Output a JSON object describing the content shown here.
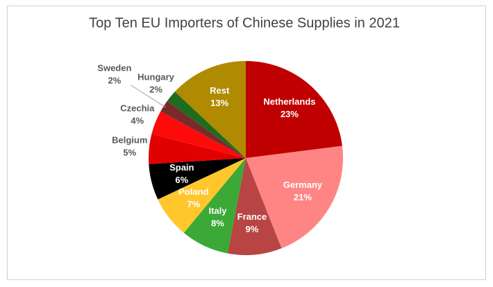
{
  "chart_data": {
    "type": "pie",
    "title": "Top Ten EU Importers of Chinese Supplies in 2021",
    "categories": [
      "Netherlands",
      "Germany",
      "France",
      "Italy",
      "Poland",
      "Spain",
      "Belgium",
      "Czechia",
      "Sweden",
      "Hungary",
      "Rest"
    ],
    "values": [
      23,
      21,
      9,
      8,
      7,
      6,
      5,
      4,
      2,
      2,
      13
    ],
    "value_labels": [
      "23%",
      "21%",
      "9%",
      "8%",
      "7%",
      "6%",
      "5%",
      "4%",
      "2%",
      "2%",
      "13%"
    ],
    "colors": [
      "#c00000",
      "#ff8585",
      "#b84444",
      "#3aa935",
      "#ffc72c",
      "#000000",
      "#e00000",
      "#ff0a0a",
      "#7a2a2a",
      "#1f6b1f",
      "#b08a00"
    ]
  }
}
